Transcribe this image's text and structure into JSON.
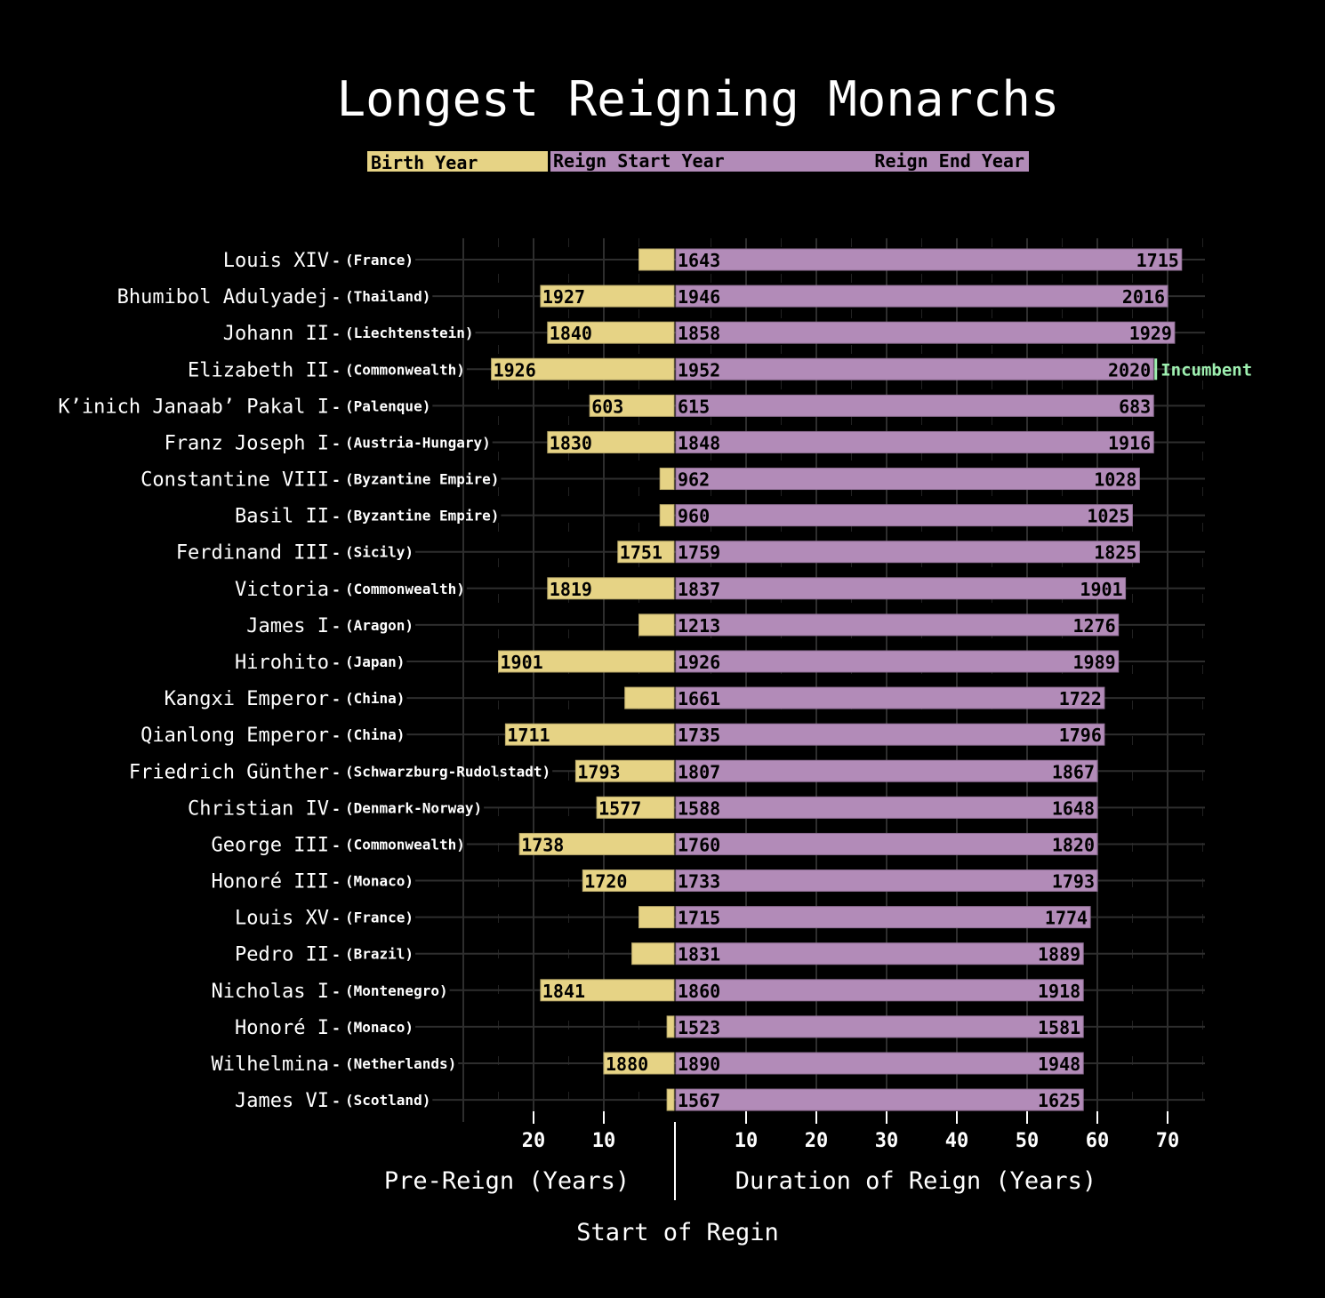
{
  "chart_data": {
    "type": "bar",
    "title": "Longest Reigning Monarchs",
    "legend": {
      "placement": "top",
      "items": [
        "Birth Year",
        "Reign Start Year",
        "Reign End Year"
      ]
    },
    "left_axis": {
      "label": "Pre-Reign (Years)",
      "ticks": [
        20,
        10
      ],
      "range": [
        0,
        30
      ]
    },
    "right_axis": {
      "label": "Duration of Reign (Years)",
      "ticks": [
        10,
        20,
        30,
        40,
        50,
        60,
        70
      ],
      "range": [
        0,
        75
      ]
    },
    "center_label": "Start of Regin",
    "incumbent_label": "Incumbent",
    "grid": true,
    "colors": {
      "pre_reign": "#e6d385",
      "reign": "#b28bb8",
      "incumbent": "#9ef0b0",
      "background": "#000000",
      "text": "#ffffff"
    },
    "monarchs": [
      {
        "name": "Louis XIV",
        "country": "(France)",
        "birth": 1638,
        "start": 1643,
        "end": 1715,
        "birth_label": false
      },
      {
        "name": "Bhumibol Adulyadej",
        "country": "(Thailand)",
        "birth": 1927,
        "start": 1946,
        "end": 2016,
        "birth_label": true
      },
      {
        "name": "Johann II",
        "country": "(Liechtenstein)",
        "birth": 1840,
        "start": 1858,
        "end": 1929,
        "birth_label": true
      },
      {
        "name": "Elizabeth II",
        "country": "(Commonwealth)",
        "birth": 1926,
        "start": 1952,
        "end": 2020,
        "birth_label": true,
        "incumbent": true
      },
      {
        "name": "K’inich Janaab’ Pakal I",
        "country": "(Palenque)",
        "birth": 603,
        "start": 615,
        "end": 683,
        "birth_label": true
      },
      {
        "name": "Franz Joseph I",
        "country": "(Austria-Hungary)",
        "birth": 1830,
        "start": 1848,
        "end": 1916,
        "birth_label": true
      },
      {
        "name": "Constantine VIII",
        "country": "(Byzantine Empire)",
        "birth": 960,
        "start": 962,
        "end": 1028,
        "birth_label": false
      },
      {
        "name": "Basil II",
        "country": "(Byzantine Empire)",
        "birth": 958,
        "start": 960,
        "end": 1025,
        "birth_label": false
      },
      {
        "name": "Ferdinand III",
        "country": "(Sicily)",
        "birth": 1751,
        "start": 1759,
        "end": 1825,
        "birth_label": true
      },
      {
        "name": "Victoria",
        "country": "(Commonwealth)",
        "birth": 1819,
        "start": 1837,
        "end": 1901,
        "birth_label": true
      },
      {
        "name": "James I",
        "country": "(Aragon)",
        "birth": 1208,
        "start": 1213,
        "end": 1276,
        "birth_label": false
      },
      {
        "name": "Hirohito",
        "country": "(Japan)",
        "birth": 1901,
        "start": 1926,
        "end": 1989,
        "birth_label": true
      },
      {
        "name": "Kangxi Emperor",
        "country": "(China)",
        "birth": 1654,
        "start": 1661,
        "end": 1722,
        "birth_label": false
      },
      {
        "name": "Qianlong Emperor",
        "country": "(China)",
        "birth": 1711,
        "start": 1735,
        "end": 1796,
        "birth_label": true
      },
      {
        "name": "Friedrich Günther",
        "country": "(Schwarzburg-Rudolstadt)",
        "birth": 1793,
        "start": 1807,
        "end": 1867,
        "birth_label": true
      },
      {
        "name": "Christian IV",
        "country": "(Denmark-Norway)",
        "birth": 1577,
        "start": 1588,
        "end": 1648,
        "birth_label": true
      },
      {
        "name": "George III",
        "country": "(Commonwealth)",
        "birth": 1738,
        "start": 1760,
        "end": 1820,
        "birth_label": true
      },
      {
        "name": "Honoré III",
        "country": "(Monaco)",
        "birth": 1720,
        "start": 1733,
        "end": 1793,
        "birth_label": true
      },
      {
        "name": "Louis XV",
        "country": "(France)",
        "birth": 1710,
        "start": 1715,
        "end": 1774,
        "birth_label": false
      },
      {
        "name": "Pedro II",
        "country": "(Brazil)",
        "birth": 1825,
        "start": 1831,
        "end": 1889,
        "birth_label": false
      },
      {
        "name": "Nicholas I",
        "country": "(Montenegro)",
        "birth": 1841,
        "start": 1860,
        "end": 1918,
        "birth_label": true
      },
      {
        "name": "Honoré I",
        "country": "(Monaco)",
        "birth": 1522,
        "start": 1523,
        "end": 1581,
        "birth_label": false
      },
      {
        "name": "Wilhelmina",
        "country": "(Netherlands)",
        "birth": 1880,
        "start": 1890,
        "end": 1948,
        "birth_label": true
      },
      {
        "name": "James VI",
        "country": "(Scotland)",
        "birth": 1566,
        "start": 1567,
        "end": 1625,
        "birth_label": false
      }
    ]
  }
}
